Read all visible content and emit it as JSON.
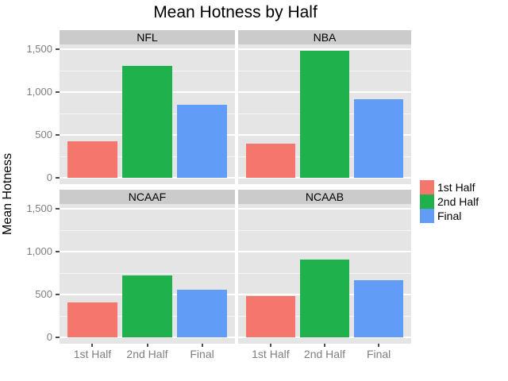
{
  "chart_data": {
    "type": "bar",
    "title": "Mean Hotness by Half",
    "ylabel": "Mean Hotness",
    "xlabel": "",
    "categories": [
      "1st Half",
      "2nd Half",
      "Final"
    ],
    "facets": [
      {
        "label": "NFL",
        "values": [
          430,
          1305,
          850
        ]
      },
      {
        "label": "NBA",
        "values": [
          400,
          1480,
          920
        ]
      },
      {
        "label": "NCAAF",
        "values": [
          410,
          720,
          560
        ]
      },
      {
        "label": "NCAAB",
        "values": [
          485,
          910,
          670
        ]
      }
    ],
    "series_colors": [
      "#F4766D",
      "#1FB24C",
      "#619CF7"
    ],
    "legend": {
      "position": "right",
      "entries": [
        {
          "label": "1st Half",
          "color": "#F4766D"
        },
        {
          "label": "2nd Half",
          "color": "#1FB24C"
        },
        {
          "label": "Final",
          "color": "#619CF7"
        }
      ]
    },
    "yticks": {
      "values": [
        0,
        500,
        1000,
        1500
      ],
      "labels": [
        "0",
        "500",
        "1,000",
        "1,500"
      ]
    },
    "minor_gridlines": [
      250,
      750,
      1250
    ],
    "ylim": [
      0,
      1560
    ],
    "grid": true,
    "panel_background": "#E5E5E5",
    "strip_background": "#CBCBCB",
    "gridline_color": "#FFFFFF",
    "tick_label_color": "#7F7F7F"
  }
}
